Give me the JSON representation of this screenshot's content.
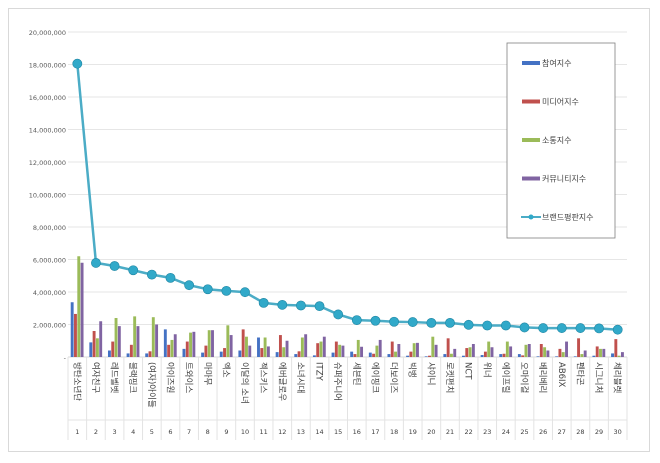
{
  "chart_data": {
    "type": "bar+line",
    "title": "",
    "xlabel": "",
    "ylabel": "",
    "ylim": [
      0,
      20000000
    ],
    "ytick_step": 2000000,
    "grid": true,
    "legend_placement": "right",
    "categories": [
      "방탄소년단",
      "여자친구",
      "레드벨벳",
      "블랙핑크",
      "(여자)아이들",
      "아이즈원",
      "트와이스",
      "마마무",
      "엑소",
      "이달의 소녀",
      "젝스키스",
      "에버글로우",
      "소녀시대",
      "ITZY",
      "슈퍼주니어",
      "세븐틴",
      "에이핑크",
      "더보이즈",
      "빅뱅",
      "샤이니",
      "로켓펀치",
      "NCT",
      "위너",
      "에이프릴",
      "오마이걸",
      "베리베리",
      "AB6IX",
      "펜타곤",
      "시그니처",
      "체리블렛"
    ],
    "ranks": [
      "1",
      "2",
      "3",
      "4",
      "5",
      "6",
      "7",
      "8",
      "9",
      "10",
      "11",
      "12",
      "13",
      "14",
      "15",
      "16",
      "17",
      "18",
      "19",
      "20",
      "21",
      "22",
      "23",
      "24",
      "25",
      "26",
      "27",
      "28",
      "29",
      "30"
    ],
    "series": [
      {
        "name": "참여지수",
        "type": "bar",
        "color": "#4472c4",
        "values": [
          3370000,
          900000,
          400000,
          220000,
          220000,
          1700000,
          500000,
          270000,
          330000,
          400000,
          1200000,
          300000,
          180000,
          100000,
          270000,
          330000,
          270000,
          180000,
          80000,
          40000,
          180000,
          80000,
          120000,
          180000,
          180000,
          40000,
          40000,
          40000,
          80000,
          220000
        ]
      },
      {
        "name": "미디어지수",
        "type": "bar",
        "color": "#c0504d",
        "values": [
          2650000,
          1600000,
          950000,
          750000,
          350000,
          750000,
          950000,
          700000,
          550000,
          1700000,
          550000,
          1350000,
          350000,
          850000,
          950000,
          180000,
          200000,
          950000,
          330000,
          80000,
          1150000,
          550000,
          330000,
          200000,
          100000,
          800000,
          500000,
          1150000,
          650000,
          1100000
        ]
      },
      {
        "name": "소통지수",
        "type": "bar",
        "color": "#9bbb59",
        "values": [
          6200000,
          1150000,
          2400000,
          2500000,
          2450000,
          1050000,
          1500000,
          1650000,
          1950000,
          1250000,
          1200000,
          600000,
          1200000,
          950000,
          750000,
          1050000,
          700000,
          330000,
          850000,
          1250000,
          200000,
          600000,
          950000,
          950000,
          750000,
          600000,
          300000,
          180000,
          500000,
          80000
        ]
      },
      {
        "name": "커뮤니티지수",
        "type": "bar",
        "color": "#8064a2",
        "values": [
          5800000,
          2200000,
          1900000,
          1900000,
          2000000,
          1400000,
          1550000,
          1650000,
          1350000,
          700000,
          650000,
          1000000,
          1400000,
          1250000,
          700000,
          630000,
          1050000,
          800000,
          870000,
          750000,
          500000,
          800000,
          600000,
          650000,
          800000,
          400000,
          950000,
          400000,
          500000,
          300000
        ]
      },
      {
        "name": "브랜드평판지수",
        "type": "line",
        "color": "#4bacc6",
        "values": [
          18050000,
          5790000,
          5600000,
          5340000,
          5070000,
          4870000,
          4420000,
          4170000,
          4070000,
          3990000,
          3330000,
          3210000,
          3170000,
          3130000,
          2620000,
          2270000,
          2230000,
          2170000,
          2150000,
          2100000,
          2100000,
          1980000,
          1940000,
          1940000,
          1820000,
          1780000,
          1780000,
          1780000,
          1760000,
          1680000
        ]
      }
    ]
  }
}
